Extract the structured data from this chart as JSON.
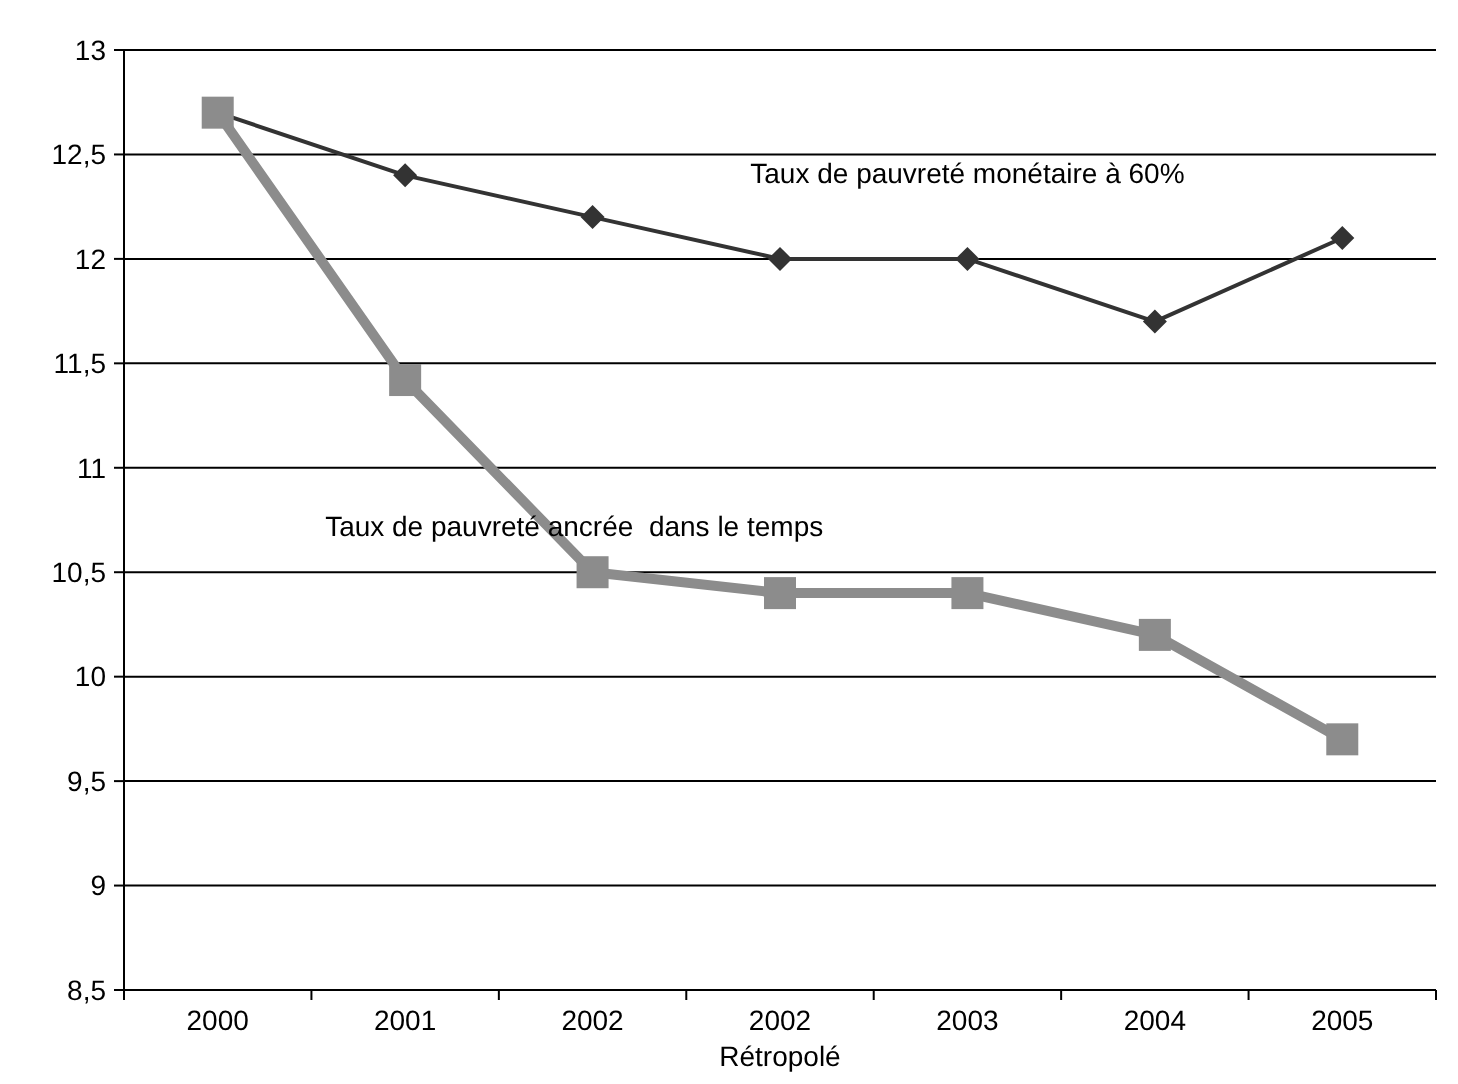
{
  "chart_data": {
    "type": "line",
    "categories": [
      "2000",
      "2001",
      "2002",
      "2002\nRétropolé",
      "2003",
      "2004",
      "2005"
    ],
    "ylim": [
      8.5,
      13
    ],
    "yticks": [
      {
        "value": 8.5,
        "label": "8,5"
      },
      {
        "value": 9,
        "label": "9"
      },
      {
        "value": 9.5,
        "label": "9,5"
      },
      {
        "value": 10,
        "label": "10"
      },
      {
        "value": 10.5,
        "label": "10,5"
      },
      {
        "value": 11,
        "label": "11"
      },
      {
        "value": 11.5,
        "label": "11,5"
      },
      {
        "value": 12,
        "label": "12"
      },
      {
        "value": 12.5,
        "label": "12,5"
      },
      {
        "value": 13,
        "label": "13"
      }
    ],
    "grid": "y",
    "series": [
      {
        "name": "Taux de pauvreté monétaire à 60%",
        "color": "#333333",
        "marker": "diamond",
        "values": [
          12.7,
          12.4,
          12.2,
          12.0,
          12.0,
          11.7,
          12.1
        ]
      },
      {
        "name": "Taux de pauvreté ancrée  dans le temps",
        "color": "#8c8c8c",
        "marker": "square",
        "values": [
          12.7,
          11.42,
          10.5,
          10.4,
          10.4,
          10.2,
          9.7
        ]
      }
    ]
  }
}
